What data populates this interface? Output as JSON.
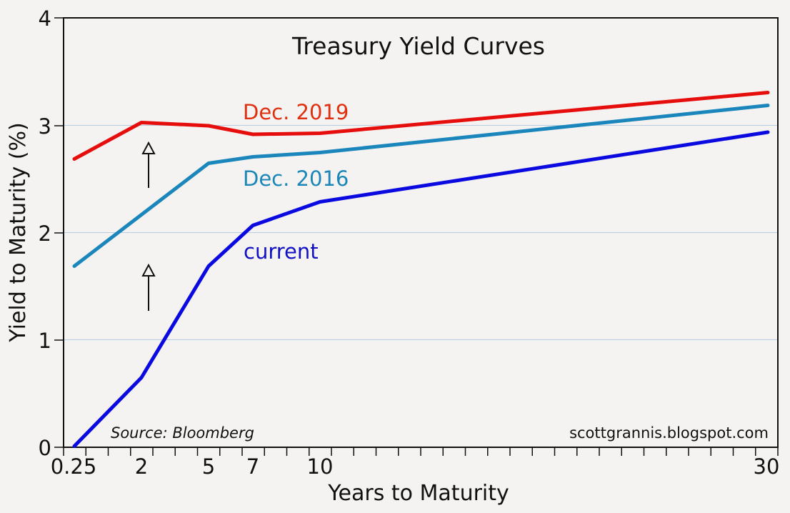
{
  "chart_data": {
    "type": "line",
    "title": "Treasury Yield Curves",
    "xlabel": "Years to Maturity",
    "ylabel": "Yield to Maturity (%)",
    "x": [
      0.25,
      2,
      5,
      7,
      10,
      30
    ],
    "x_tick_labels": [
      "0.25",
      "2",
      "5",
      "7",
      "10",
      "30"
    ],
    "ylim": [
      0,
      4
    ],
    "y_ticks": [
      0,
      1,
      2,
      3,
      4
    ],
    "grid": "horizontal",
    "legend": "inline labels",
    "series": [
      {
        "name": "Dec. 2019",
        "color": "#e60d0d",
        "label_color": "#e0300f",
        "values": [
          2.69,
          3.03,
          3.0,
          2.92,
          2.93,
          3.31
        ]
      },
      {
        "name": "Dec. 2016",
        "color": "#1a86bb",
        "label_color": "#1b87b8",
        "values": [
          1.69,
          2.17,
          2.65,
          2.71,
          2.75,
          3.19
        ]
      },
      {
        "name": "current",
        "color": "#0a0ae0",
        "label_color": "#1212c4",
        "values": [
          0.01,
          0.65,
          1.69,
          2.07,
          2.29,
          2.94
        ]
      }
    ],
    "annotations": [
      "Source:  Bloomberg",
      "scottgrannis.blogspot.com",
      "up-arrow between current and Dec. 2016",
      "up-arrow between Dec. 2016 and Dec. 2019"
    ]
  },
  "labels": {
    "title": "Treasury Yield Curves",
    "xlabel": "Years to Maturity",
    "ylabel": "Yield to Maturity (%)",
    "source": "Source:  Bloomberg",
    "watermark": "scottgrannis.blogspot.com",
    "y_ticks": [
      "0",
      "1",
      "2",
      "3",
      "4"
    ],
    "x_ticks": [
      "0.25",
      "2",
      "5",
      "7",
      "10",
      "30"
    ],
    "series_dec2019": "Dec. 2019",
    "series_dec2016": "Dec. 2016",
    "series_current": "current"
  }
}
